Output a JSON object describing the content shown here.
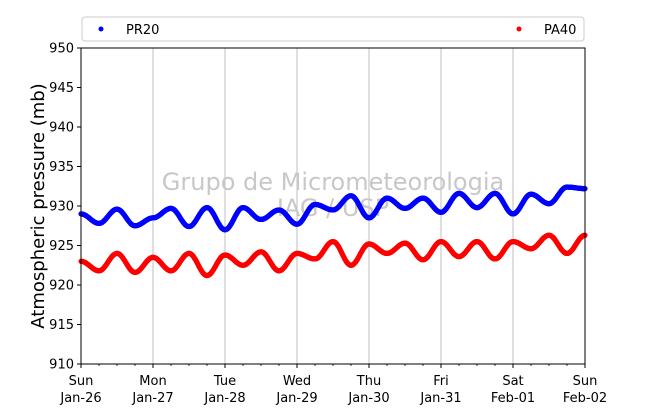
{
  "chart_data": {
    "type": "scatter",
    "title": "",
    "xlabel": "",
    "ylabel": "Atmospheric pressure (mb)",
    "ylim": [
      910,
      950
    ],
    "yticks": [
      910,
      915,
      920,
      925,
      930,
      935,
      940,
      945,
      950
    ],
    "xlim": [
      "2020-01-26",
      "2020-02-02"
    ],
    "xticks": [
      {
        "date": "2020-01-26",
        "day": "Sun",
        "label": "Jan-26"
      },
      {
        "date": "2020-01-27",
        "day": "Mon",
        "label": "Jan-27"
      },
      {
        "date": "2020-01-28",
        "day": "Tue",
        "label": "Jan-28"
      },
      {
        "date": "2020-01-29",
        "day": "Wed",
        "label": "Jan-29"
      },
      {
        "date": "2020-01-30",
        "day": "Thu",
        "label": "Jan-30"
      },
      {
        "date": "2020-01-31",
        "day": "Fri",
        "label": "Jan-31"
      },
      {
        "date": "2020-02-01",
        "day": "Sat",
        "label": "Feb-01"
      },
      {
        "date": "2020-02-02",
        "day": "Sun",
        "label": "Feb-02"
      }
    ],
    "grid": "vertical",
    "legend_placement": "top",
    "watermark": [
      "Grupo de Micrometeorologia",
      "IAG / USP"
    ],
    "series": [
      {
        "name": "PR20",
        "color": "#0000ff",
        "x": [
          "2020-01-26 00:00",
          "2020-01-26 06:00",
          "2020-01-26 12:00",
          "2020-01-26 18:00",
          "2020-01-27 00:00",
          "2020-01-27 06:00",
          "2020-01-27 12:00",
          "2020-01-27 18:00",
          "2020-01-28 00:00",
          "2020-01-28 06:00",
          "2020-01-28 12:00",
          "2020-01-28 18:00",
          "2020-01-29 00:00",
          "2020-01-29 06:00",
          "2020-01-29 12:00",
          "2020-01-29 18:00",
          "2020-01-30 00:00",
          "2020-01-30 06:00",
          "2020-01-30 12:00",
          "2020-01-30 18:00",
          "2020-01-31 00:00",
          "2020-01-31 06:00",
          "2020-01-31 12:00",
          "2020-01-31 18:00",
          "2020-02-01 00:00",
          "2020-02-01 06:00",
          "2020-02-01 12:00",
          "2020-02-01 18:00",
          "2020-02-02 00:00"
        ],
        "y": [
          929.0,
          927.8,
          929.6,
          927.5,
          928.5,
          929.7,
          927.4,
          929.8,
          927.0,
          929.8,
          928.3,
          929.5,
          927.7,
          930.2,
          929.5,
          931.3,
          928.5,
          931.0,
          929.7,
          931.0,
          929.2,
          931.6,
          929.8,
          931.6,
          929.0,
          931.5,
          930.3,
          932.4,
          932.2
        ]
      },
      {
        "name": "PA40",
        "color": "#ff0000",
        "x": [
          "2020-01-26 00:00",
          "2020-01-26 06:00",
          "2020-01-26 12:00",
          "2020-01-26 18:00",
          "2020-01-27 00:00",
          "2020-01-27 06:00",
          "2020-01-27 12:00",
          "2020-01-27 18:00",
          "2020-01-28 00:00",
          "2020-01-28 06:00",
          "2020-01-28 12:00",
          "2020-01-28 18:00",
          "2020-01-29 00:00",
          "2020-01-29 06:00",
          "2020-01-29 12:00",
          "2020-01-29 18:00",
          "2020-01-30 00:00",
          "2020-01-30 06:00",
          "2020-01-30 12:00",
          "2020-01-30 18:00",
          "2020-01-31 00:00",
          "2020-01-31 06:00",
          "2020-01-31 12:00",
          "2020-01-31 18:00",
          "2020-02-01 00:00",
          "2020-02-01 06:00",
          "2020-02-01 12:00",
          "2020-02-01 18:00",
          "2020-02-02 00:00"
        ],
        "y": [
          923.0,
          921.8,
          924.0,
          921.6,
          923.5,
          921.8,
          924.0,
          921.2,
          923.8,
          922.5,
          924.2,
          921.8,
          924.0,
          923.3,
          925.5,
          922.5,
          925.2,
          924.0,
          925.3,
          923.2,
          925.5,
          923.6,
          925.5,
          923.3,
          925.5,
          924.6,
          926.3,
          924.0,
          926.3
        ]
      }
    ]
  }
}
